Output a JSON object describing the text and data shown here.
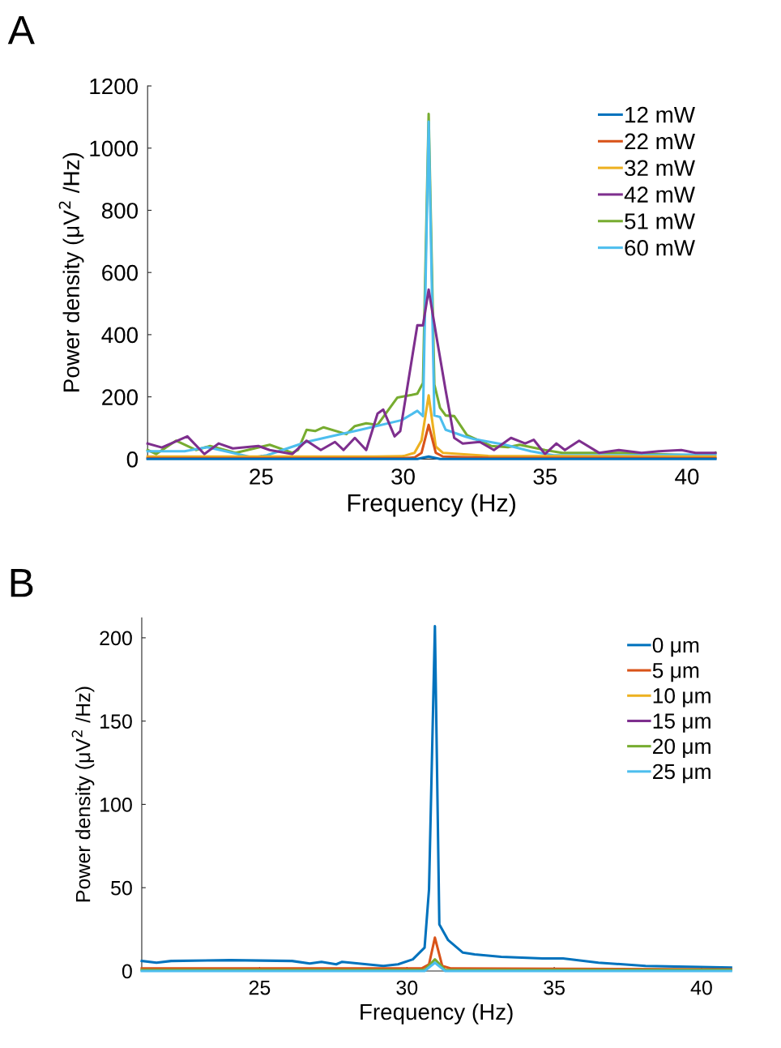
{
  "chart_data": [
    {
      "type": "line",
      "xlabel": "Frequency (Hz)",
      "ylabel": "Power density (μV$^{2}$ /Hz)",
      "xlim": [
        21,
        41
      ],
      "ylim": [
        0,
        1200
      ],
      "xticks": [
        25,
        30,
        35,
        40
      ],
      "yticks": [
        0,
        200,
        400,
        600,
        800,
        1000,
        1200
      ],
      "legend": "top right",
      "grid": false,
      "annotations": [
        "A"
      ],
      "series": [
        {
          "name": "12 mW",
          "color": "#0072bd",
          "x": [
            21,
            30.5,
            30.9,
            31.3,
            41
          ],
          "values": [
            0,
            0,
            8,
            0,
            0
          ]
        },
        {
          "name": "22 mW",
          "color": "#d95319",
          "x": [
            21,
            30,
            30.4,
            30.65,
            30.9,
            31.15,
            31.4,
            33,
            41
          ],
          "values": [
            3,
            3,
            5,
            20,
            110,
            20,
            8,
            4,
            3
          ]
        },
        {
          "name": "32 mW",
          "color": "#edb120",
          "x": [
            21,
            29,
            30,
            30.4,
            30.65,
            30.9,
            31.15,
            31.4,
            33,
            41
          ],
          "values": [
            8,
            8,
            9,
            20,
            60,
            205,
            40,
            20,
            10,
            8
          ]
        },
        {
          "name": "42 mW",
          "color": "#7e2f8e",
          "x": [
            21,
            21.5,
            22.4,
            23,
            23.5,
            24,
            24.9,
            25.3,
            26.1,
            26.6,
            27.1,
            27.6,
            27.9,
            28.3,
            28.7,
            29.1,
            29.3,
            29.7,
            29.9,
            30.5,
            30.7,
            30.9,
            31.2,
            31.5,
            31.8,
            32.1,
            32.7,
            33.2,
            33.8,
            34.3,
            34.6,
            35.0,
            35.4,
            35.7,
            36.2,
            36.9,
            37.6,
            38.4,
            39.0,
            39.8,
            40.3,
            41
          ],
          "values": [
            50,
            37,
            73,
            16,
            50,
            34,
            42,
            29,
            16,
            59,
            29,
            55,
            29,
            68,
            29,
            146,
            159,
            73,
            90,
            430,
            430,
            545,
            380,
            220,
            68,
            50,
            55,
            29,
            68,
            50,
            62,
            16,
            50,
            29,
            59,
            20,
            29,
            20,
            25,
            29,
            20,
            20
          ]
        },
        {
          "name": "51 mW",
          "color": "#77ac30",
          "x": [
            21,
            21.3,
            22.0,
            22.7,
            23.2,
            24.1,
            25.3,
            26.1,
            26.3,
            26.6,
            26.9,
            27.2,
            28.0,
            28.3,
            28.7,
            29.1,
            29.8,
            30.3,
            30.5,
            30.7,
            30.9,
            31.1,
            31.3,
            31.5,
            31.8,
            32.25,
            33.1,
            33.7,
            34.1,
            35.0,
            35.6,
            37.8,
            40.8,
            41
          ],
          "values": [
            29,
            16,
            59,
            29,
            42,
            20,
            46,
            20,
            29,
            94,
            90,
            102,
            80,
            106,
            115,
            110,
            198,
            206,
            210,
            245,
            1110,
            240,
            165,
            140,
            138,
            77,
            42,
            38,
            46,
            29,
            20,
            20,
            10,
            20
          ]
        },
        {
          "name": "60 mW",
          "color": "#4dbeee",
          "x": [
            21,
            22.3,
            23.1,
            24.0,
            24.7,
            25.2,
            26.6,
            27.6,
            28.5,
            29.95,
            30.5,
            30.7,
            30.9,
            31.1,
            31.3,
            31.5,
            32.2,
            32.5,
            33.6,
            34.5,
            35.3,
            37.8,
            41
          ],
          "values": [
            25,
            25,
            38,
            20,
            5,
            12,
            55,
            76,
            94,
            125,
            155,
            138,
            1085,
            140,
            135,
            94,
            72,
            64,
            46,
            25,
            12,
            12,
            15
          ]
        }
      ]
    },
    {
      "type": "line",
      "xlabel": "Frequency (Hz)",
      "ylabel": "Power density (μV$^{2}$ /Hz)",
      "xlim": [
        21,
        41
      ],
      "ylim": [
        0,
        212
      ],
      "xticks": [
        25,
        30,
        35,
        40
      ],
      "yticks": [
        0,
        50,
        100,
        150,
        200
      ],
      "legend": "top right",
      "grid": false,
      "annotations": [
        "B"
      ],
      "series": [
        {
          "name": "0 μm",
          "color": "#0072bd",
          "x": [
            21,
            21.5,
            22.0,
            24.0,
            26.1,
            26.7,
            27.1,
            27.6,
            27.8,
            29.2,
            29.7,
            30.2,
            30.6,
            30.75,
            30.95,
            31.1,
            31.4,
            31.9,
            32.3,
            33.2,
            34.6,
            35.3,
            36.5,
            38.1,
            41
          ],
          "values": [
            6,
            5,
            6,
            6.5,
            6,
            4.5,
            5.5,
            4,
            5.5,
            3,
            4,
            7,
            14,
            49,
            207,
            28,
            18.5,
            11,
            10,
            8.5,
            7.5,
            7.5,
            5,
            3,
            2
          ]
        },
        {
          "name": "5 μm",
          "color": "#d95319",
          "x": [
            21,
            30.5,
            30.75,
            30.95,
            31.2,
            31.5,
            41
          ],
          "values": [
            1.5,
            1.5,
            4,
            20,
            3,
            1.5,
            1
          ]
        },
        {
          "name": "10 μm",
          "color": "#edb120"
        },
        {
          "name": "15 μm",
          "color": "#7e2f8e"
        },
        {
          "name": "20 μm",
          "color": "#77ac30",
          "x": [
            21,
            30.6,
            30.95,
            31.3,
            41
          ],
          "values": [
            0.6,
            0.6,
            7,
            0.6,
            0.6
          ]
        },
        {
          "name": "25 μm",
          "color": "#4dbeee",
          "x": [
            21,
            30.6,
            30.95,
            31.3,
            41
          ],
          "values": [
            0,
            0,
            5,
            0,
            0
          ]
        }
      ]
    }
  ]
}
